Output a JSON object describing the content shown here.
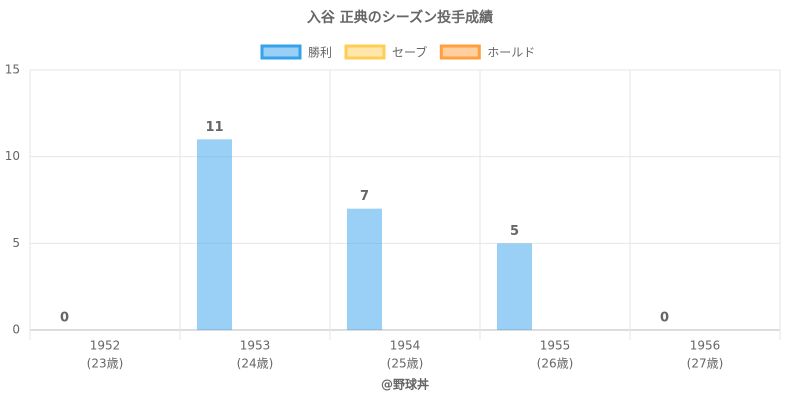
{
  "chart_data": {
    "type": "bar",
    "title": "入谷 正典のシーズン投手成績",
    "x_label": "@野球丼",
    "categories": [
      [
        "1952",
        "(23歳)"
      ],
      [
        "1953",
        "(24歳)"
      ],
      [
        "1954",
        "(25歳)"
      ],
      [
        "1955",
        "(26歳)"
      ],
      [
        "1956",
        "(27歳)"
      ]
    ],
    "series": [
      {
        "name": "勝利",
        "color": "#36a2eb",
        "values": [
          0,
          11,
          7,
          5,
          0
        ]
      },
      {
        "name": "セーブ",
        "color": "#ffcd56",
        "values": [
          null,
          null,
          null,
          null,
          null
        ]
      },
      {
        "name": "ホールド",
        "color": "#ff9f40",
        "values": [
          null,
          null,
          null,
          null,
          null
        ]
      }
    ],
    "ylim": [
      0,
      15
    ],
    "yticks": [
      0,
      5,
      10,
      15
    ],
    "grid": true,
    "legend": "top"
  }
}
